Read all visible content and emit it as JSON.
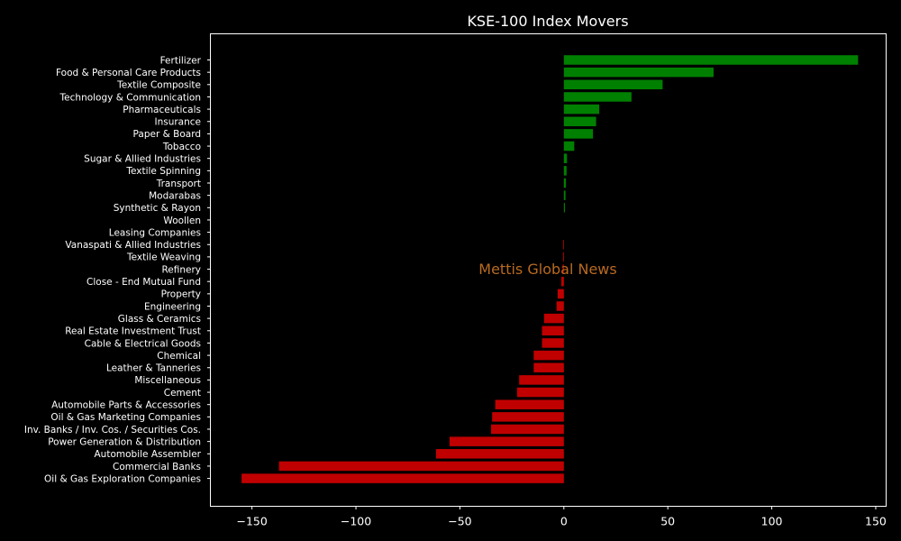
{
  "chart_data": {
    "type": "bar",
    "orientation": "horizontal",
    "title": "KSE-100 Index Movers",
    "xlabel": "",
    "ylabel": "",
    "watermark": "Mettis Global News",
    "xlim": [
      -170,
      155
    ],
    "xticks": [
      -150,
      -100,
      -50,
      0,
      50,
      100,
      150
    ],
    "xtick_labels": [
      "−150",
      "−100",
      "−50",
      "0",
      "50",
      "100",
      "150"
    ],
    "grid": false,
    "legend": "none",
    "colors": {
      "background": "#000000",
      "axes": "#ffffff",
      "positive": "#008000",
      "negative": "#c00000",
      "watermark": "#b86a22"
    },
    "categories": [
      "Fertilizer",
      "Food & Personal Care Products",
      "Textile Composite",
      "Technology & Communication",
      "Pharmaceuticals",
      "Insurance",
      "Paper & Board",
      "Tobacco",
      "Sugar & Allied Industries",
      "Textile Spinning",
      "Transport",
      "Modarabas",
      "Synthetic & Rayon",
      "Woollen",
      "Leasing Companies",
      "Vanaspati & Allied Industries",
      "Textile Weaving",
      "Refinery",
      "Close - End Mutual Fund",
      "Property",
      "Engineering",
      "Glass & Ceramics",
      "Real Estate Investment Trust",
      "Cable & Electrical Goods",
      "Chemical",
      "Leather & Tanneries",
      "Miscellaneous",
      "Cement",
      "Automobile Parts & Accessories",
      "Oil & Gas Marketing Companies",
      "Inv. Banks / Inv. Cos. / Securities Cos.",
      "Power Generation & Distribution",
      "Automobile Assembler",
      "Commercial Banks",
      "Oil & Gas Exploration Companies"
    ],
    "values": [
      141.5,
      72,
      47.5,
      32.5,
      17,
      15.5,
      14,
      5,
      1.5,
      1.3,
      1.0,
      0.8,
      0.5,
      0,
      0,
      -0.3,
      -0.4,
      -0.6,
      -1.2,
      -3,
      -3.5,
      -9.5,
      -10.5,
      -10.5,
      -14.5,
      -14.5,
      -21.5,
      -22.5,
      -33,
      -34.5,
      -35,
      -55,
      -61.5,
      -137,
      -155
    ]
  }
}
